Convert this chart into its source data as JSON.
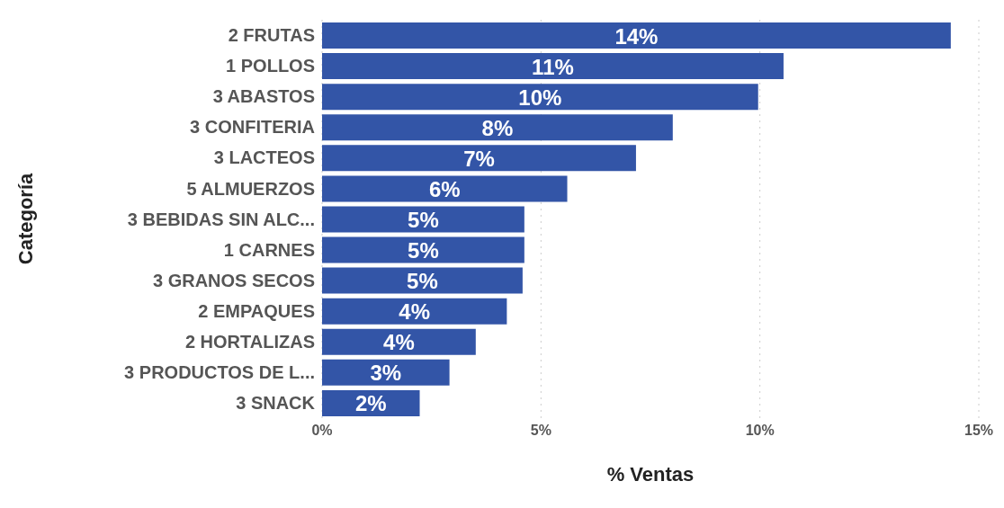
{
  "chart_data": {
    "type": "bar",
    "orientation": "horizontal",
    "xlabel": "% Ventas",
    "ylabel": "Categoría",
    "categories": [
      "2 FRUTAS",
      "1 POLLOS",
      "3 ABASTOS",
      "3 CONFITERIA",
      "3 LACTEOS",
      "5 ALMUERZOS",
      "3 BEBIDAS SIN ALC...",
      "1 CARNES",
      "3 GRANOS SECOS",
      "2 EMPAQUES",
      "2 HORTALIZAS",
      "3 PRODUCTOS DE L...",
      "3 SNACK"
    ],
    "values": [
      14.36,
      10.54,
      9.96,
      8.01,
      7.17,
      5.6,
      4.62,
      4.62,
      4.58,
      4.22,
      3.51,
      2.91,
      2.23
    ],
    "value_labels": [
      "14%",
      "11%",
      "10%",
      "8%",
      "7%",
      "6%",
      "5%",
      "5%",
      "5%",
      "4%",
      "4%",
      "3%",
      "2%"
    ],
    "color": "#3355a7",
    "xlim": [
      0,
      15
    ],
    "xticks": [
      {
        "value": 0,
        "label": "0%"
      },
      {
        "value": 5,
        "label": "5%"
      },
      {
        "value": 10,
        "label": "10%"
      },
      {
        "value": 15,
        "label": "15%"
      }
    ],
    "grid": "x"
  }
}
